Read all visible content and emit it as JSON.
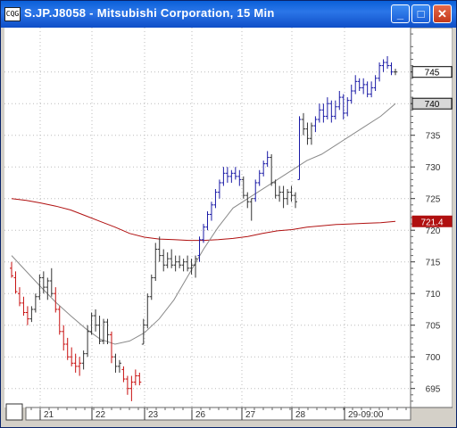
{
  "window": {
    "title": "S.JP.J8058 - Mitsubishi Corporation, 15 Min",
    "icon": "chart-app-icon",
    "controls": [
      {
        "name": "minimize-button",
        "glyph": "_"
      },
      {
        "name": "maximize-button",
        "glyph": "□"
      },
      {
        "name": "close-button",
        "glyph": "✕"
      }
    ]
  },
  "chart_data": {
    "type": "ohlc-line",
    "title": "S.JP.J8058 - Mitsubishi Corporation, 15 Min",
    "ylim": [
      692,
      752
    ],
    "yticks": [
      695,
      700,
      705,
      710,
      715,
      720,
      725,
      730,
      735,
      740,
      745
    ],
    "xticks": [
      "21",
      "22",
      "23",
      "26",
      "27",
      "28",
      "29-09:00"
    ],
    "price_labels": [
      {
        "value": 745,
        "text": "745",
        "style": "last"
      },
      {
        "value": 740,
        "text": "740",
        "style": "ma-short"
      },
      {
        "value": 721.4,
        "text": "721.4",
        "style": "ma-long"
      }
    ],
    "colors": {
      "up": "#1a1aa6",
      "down": "#c81010",
      "neutral": "#333333",
      "ma_short": "#8a8a8a",
      "ma_long": "#b01010",
      "grid": "#bbbbbb"
    },
    "ma_long": [
      725,
      724.7,
      724.3,
      723.8,
      723.2,
      722.3,
      721.4,
      720.5,
      719.5,
      718.9,
      718.6,
      718.5,
      718.4,
      718.4,
      718.5,
      718.7,
      719,
      719.5,
      719.9,
      720.1,
      720.5,
      720.7,
      720.9,
      721,
      721.1,
      721.2,
      721.4
    ],
    "ma_short": [
      716,
      713.5,
      711,
      708.6,
      706.5,
      704.5,
      702.8,
      702,
      702.5,
      703.8,
      706,
      709,
      713,
      717,
      720.5,
      723.5,
      725,
      726.5,
      728,
      729.5,
      731,
      732,
      733.5,
      735,
      736.5,
      738,
      740
    ],
    "bars": [
      {
        "o": 714.0,
        "h": 715.0,
        "l": 712.5,
        "c": 712.8,
        "t": "d"
      },
      {
        "o": 712.5,
        "h": 713.5,
        "l": 710.0,
        "c": 710.3,
        "t": "d"
      },
      {
        "o": 710.0,
        "h": 711.0,
        "l": 708.0,
        "c": 708.5,
        "t": "d"
      },
      {
        "o": 708.5,
        "h": 709.5,
        "l": 706.5,
        "c": 707.0,
        "t": "d"
      },
      {
        "o": 707.0,
        "h": 708.0,
        "l": 705.0,
        "c": 706.0,
        "t": "d"
      },
      {
        "o": 706.0,
        "h": 708.0,
        "l": 705.5,
        "c": 707.5,
        "t": "n"
      },
      {
        "o": 707.5,
        "h": 710.0,
        "l": 707.0,
        "c": 709.5,
        "t": "n"
      },
      {
        "o": 709.5,
        "h": 713.0,
        "l": 709.0,
        "c": 712.5,
        "t": "n"
      },
      {
        "o": 712.5,
        "h": 713.5,
        "l": 710.0,
        "c": 711.0,
        "t": "n"
      },
      {
        "o": 711.0,
        "h": 712.5,
        "l": 709.0,
        "c": 712.0,
        "t": "n"
      },
      {
        "o": 712.0,
        "h": 714.0,
        "l": 709.5,
        "c": 710.0,
        "t": "n"
      },
      {
        "o": 710.0,
        "h": 711.0,
        "l": 707.0,
        "c": 707.5,
        "t": "d"
      },
      {
        "o": 707.5,
        "h": 708.0,
        "l": 703.5,
        "c": 704.0,
        "t": "d"
      },
      {
        "o": 704.0,
        "h": 705.0,
        "l": 701.0,
        "c": 702.0,
        "t": "d"
      },
      {
        "o": 702.0,
        "h": 703.0,
        "l": 699.5,
        "c": 700.0,
        "t": "d"
      },
      {
        "o": 700.0,
        "h": 701.5,
        "l": 698.5,
        "c": 699.0,
        "t": "d"
      },
      {
        "o": 699.0,
        "h": 700.5,
        "l": 697.5,
        "c": 698.5,
        "t": "d"
      },
      {
        "o": 698.5,
        "h": 700.0,
        "l": 697.0,
        "c": 699.0,
        "t": "d"
      },
      {
        "o": 699.0,
        "h": 701.0,
        "l": 698.0,
        "c": 700.5,
        "t": "n"
      },
      {
        "o": 700.5,
        "h": 705.0,
        "l": 700.0,
        "c": 704.0,
        "t": "n"
      },
      {
        "o": 704.0,
        "h": 707.0,
        "l": 703.5,
        "c": 706.5,
        "t": "n"
      },
      {
        "o": 706.5,
        "h": 707.5,
        "l": 704.0,
        "c": 705.0,
        "t": "n"
      },
      {
        "o": 705.0,
        "h": 706.5,
        "l": 702.0,
        "c": 702.5,
        "t": "n"
      },
      {
        "o": 702.5,
        "h": 706.0,
        "l": 702.0,
        "c": 705.5,
        "t": "n"
      },
      {
        "o": 705.5,
        "h": 706.0,
        "l": 702.0,
        "c": 703.5,
        "t": "n"
      },
      {
        "o": 703.5,
        "h": 704.0,
        "l": 699.0,
        "c": 700.0,
        "t": "d"
      },
      {
        "o": 700.0,
        "h": 700.5,
        "l": 697.5,
        "c": 698.5,
        "t": "n"
      },
      {
        "o": 698.5,
        "h": 699.5,
        "l": 697.5,
        "c": 699.0,
        "t": "n"
      },
      {
        "o": 698.0,
        "h": 698.5,
        "l": 696.0,
        "c": 696.5,
        "t": "d"
      },
      {
        "o": 696.5,
        "h": 697.0,
        "l": 694.0,
        "c": 695.0,
        "t": "d"
      },
      {
        "o": 695.0,
        "h": 697.0,
        "l": 693.0,
        "c": 696.0,
        "t": "d"
      },
      {
        "o": 696.0,
        "h": 698.0,
        "l": 695.5,
        "c": 697.0,
        "t": "d"
      },
      {
        "o": 697.0,
        "h": 697.5,
        "l": 695.5,
        "c": 696.0,
        "t": "d"
      },
      {
        "o": 702.0,
        "h": 706.0,
        "l": 702.0,
        "c": 705.0,
        "t": "n"
      },
      {
        "o": 705.0,
        "h": 710.0,
        "l": 704.5,
        "c": 709.5,
        "t": "n"
      },
      {
        "o": 709.5,
        "h": 713.0,
        "l": 709.0,
        "c": 712.5,
        "t": "n"
      },
      {
        "o": 712.5,
        "h": 718.0,
        "l": 712.0,
        "c": 717.0,
        "t": "n"
      },
      {
        "o": 717.0,
        "h": 719.0,
        "l": 715.0,
        "c": 716.0,
        "t": "n"
      },
      {
        "o": 716.0,
        "h": 717.0,
        "l": 713.5,
        "c": 714.5,
        "t": "n"
      },
      {
        "o": 714.5,
        "h": 716.5,
        "l": 714.0,
        "c": 715.5,
        "t": "n"
      },
      {
        "o": 715.5,
        "h": 717.0,
        "l": 714.0,
        "c": 714.5,
        "t": "n"
      },
      {
        "o": 714.5,
        "h": 716.0,
        "l": 713.5,
        "c": 715.0,
        "t": "n"
      },
      {
        "o": 715.0,
        "h": 716.0,
        "l": 714.0,
        "c": 714.5,
        "t": "n"
      },
      {
        "o": 714.5,
        "h": 715.5,
        "l": 713.5,
        "c": 715.0,
        "t": "n"
      },
      {
        "o": 715.0,
        "h": 716.0,
        "l": 713.5,
        "c": 714.0,
        "t": "n"
      },
      {
        "o": 714.0,
        "h": 715.5,
        "l": 713.0,
        "c": 714.5,
        "t": "n"
      },
      {
        "o": 714.5,
        "h": 716.0,
        "l": 712.5,
        "c": 715.5,
        "t": "n"
      },
      {
        "o": 716.0,
        "h": 719.0,
        "l": 715.0,
        "c": 718.5,
        "t": "u"
      },
      {
        "o": 718.5,
        "h": 721.0,
        "l": 718.0,
        "c": 720.5,
        "t": "u"
      },
      {
        "o": 720.5,
        "h": 723.0,
        "l": 720.0,
        "c": 722.5,
        "t": "u"
      },
      {
        "o": 722.5,
        "h": 724.5,
        "l": 721.5,
        "c": 724.0,
        "t": "u"
      },
      {
        "o": 724.0,
        "h": 726.5,
        "l": 723.5,
        "c": 726.0,
        "t": "u"
      },
      {
        "o": 726.0,
        "h": 728.0,
        "l": 725.0,
        "c": 727.5,
        "t": "u"
      },
      {
        "o": 727.5,
        "h": 730.0,
        "l": 727.0,
        "c": 729.0,
        "t": "u"
      },
      {
        "o": 729.0,
        "h": 730.0,
        "l": 727.5,
        "c": 728.5,
        "t": "u"
      },
      {
        "o": 728.5,
        "h": 729.5,
        "l": 727.5,
        "c": 729.0,
        "t": "u"
      },
      {
        "o": 729.0,
        "h": 730.0,
        "l": 728.0,
        "c": 728.5,
        "t": "u"
      },
      {
        "o": 728.5,
        "h": 729.5,
        "l": 727.0,
        "c": 728.0,
        "t": "u"
      },
      {
        "o": 728.0,
        "h": 728.5,
        "l": 725.0,
        "c": 725.5,
        "t": "n"
      },
      {
        "o": 725.5,
        "h": 726.0,
        "l": 723.5,
        "c": 724.5,
        "t": "n"
      },
      {
        "o": 724.5,
        "h": 725.0,
        "l": 721.5,
        "c": 725.0,
        "t": "n"
      },
      {
        "o": 725.0,
        "h": 728.0,
        "l": 724.5,
        "c": 727.5,
        "t": "u"
      },
      {
        "o": 727.5,
        "h": 729.5,
        "l": 727.0,
        "c": 729.0,
        "t": "u"
      },
      {
        "o": 729.0,
        "h": 731.0,
        "l": 728.5,
        "c": 730.5,
        "t": "u"
      },
      {
        "o": 730.5,
        "h": 732.5,
        "l": 730.0,
        "c": 731.5,
        "t": "u"
      },
      {
        "o": 731.5,
        "h": 732.0,
        "l": 727.0,
        "c": 727.5,
        "t": "n"
      },
      {
        "o": 727.5,
        "h": 728.0,
        "l": 725.0,
        "c": 725.5,
        "t": "n"
      },
      {
        "o": 725.5,
        "h": 727.0,
        "l": 724.5,
        "c": 726.0,
        "t": "n"
      },
      {
        "o": 726.0,
        "h": 727.0,
        "l": 723.5,
        "c": 725.0,
        "t": "n"
      },
      {
        "o": 725.0,
        "h": 726.5,
        "l": 724.0,
        "c": 726.0,
        "t": "n"
      },
      {
        "o": 726.0,
        "h": 727.0,
        "l": 724.5,
        "c": 725.5,
        "t": "n"
      },
      {
        "o": 725.5,
        "h": 726.0,
        "l": 723.5,
        "c": 724.5,
        "t": "n"
      },
      {
        "o": 728.0,
        "h": 738.0,
        "l": 728.0,
        "c": 737.5,
        "t": "u"
      },
      {
        "o": 737.5,
        "h": 738.5,
        "l": 735.0,
        "c": 736.0,
        "t": "n"
      },
      {
        "o": 736.0,
        "h": 737.0,
        "l": 733.5,
        "c": 734.5,
        "t": "n"
      },
      {
        "o": 734.5,
        "h": 737.0,
        "l": 733.5,
        "c": 736.5,
        "t": "n"
      },
      {
        "o": 736.5,
        "h": 738.0,
        "l": 735.5,
        "c": 737.5,
        "t": "u"
      },
      {
        "o": 737.5,
        "h": 740.0,
        "l": 737.0,
        "c": 739.0,
        "t": "u"
      },
      {
        "o": 739.0,
        "h": 740.0,
        "l": 737.0,
        "c": 738.0,
        "t": "u"
      },
      {
        "o": 738.0,
        "h": 741.0,
        "l": 737.5,
        "c": 740.0,
        "t": "u"
      },
      {
        "o": 740.0,
        "h": 740.5,
        "l": 737.0,
        "c": 738.0,
        "t": "u"
      },
      {
        "o": 738.0,
        "h": 740.5,
        "l": 737.5,
        "c": 739.5,
        "t": "u"
      },
      {
        "o": 739.5,
        "h": 742.0,
        "l": 739.0,
        "c": 741.0,
        "t": "u"
      },
      {
        "o": 741.0,
        "h": 741.5,
        "l": 737.5,
        "c": 738.5,
        "t": "u"
      },
      {
        "o": 738.5,
        "h": 741.0,
        "l": 738.0,
        "c": 740.5,
        "t": "u"
      },
      {
        "o": 740.5,
        "h": 743.0,
        "l": 740.0,
        "c": 742.0,
        "t": "u"
      },
      {
        "o": 742.0,
        "h": 744.5,
        "l": 741.5,
        "c": 743.5,
        "t": "u"
      },
      {
        "o": 743.5,
        "h": 744.0,
        "l": 742.0,
        "c": 742.5,
        "t": "u"
      },
      {
        "o": 742.5,
        "h": 744.0,
        "l": 741.5,
        "c": 743.0,
        "t": "u"
      },
      {
        "o": 743.0,
        "h": 743.5,
        "l": 741.0,
        "c": 741.5,
        "t": "u"
      },
      {
        "o": 741.5,
        "h": 743.5,
        "l": 741.0,
        "c": 742.5,
        "t": "u"
      },
      {
        "o": 742.5,
        "h": 744.5,
        "l": 742.0,
        "c": 744.0,
        "t": "u"
      },
      {
        "o": 744.0,
        "h": 746.5,
        "l": 743.5,
        "c": 746.0,
        "t": "u"
      },
      {
        "o": 746.0,
        "h": 747.0,
        "l": 745.0,
        "c": 746.5,
        "t": "u"
      },
      {
        "o": 746.5,
        "h": 747.5,
        "l": 745.5,
        "c": 746.0,
        "t": "u"
      },
      {
        "o": 746.0,
        "h": 746.5,
        "l": 744.5,
        "c": 745.0,
        "t": "u"
      },
      {
        "o": 745.0,
        "h": 745.5,
        "l": 744.5,
        "c": 745.0,
        "t": "n"
      }
    ]
  }
}
